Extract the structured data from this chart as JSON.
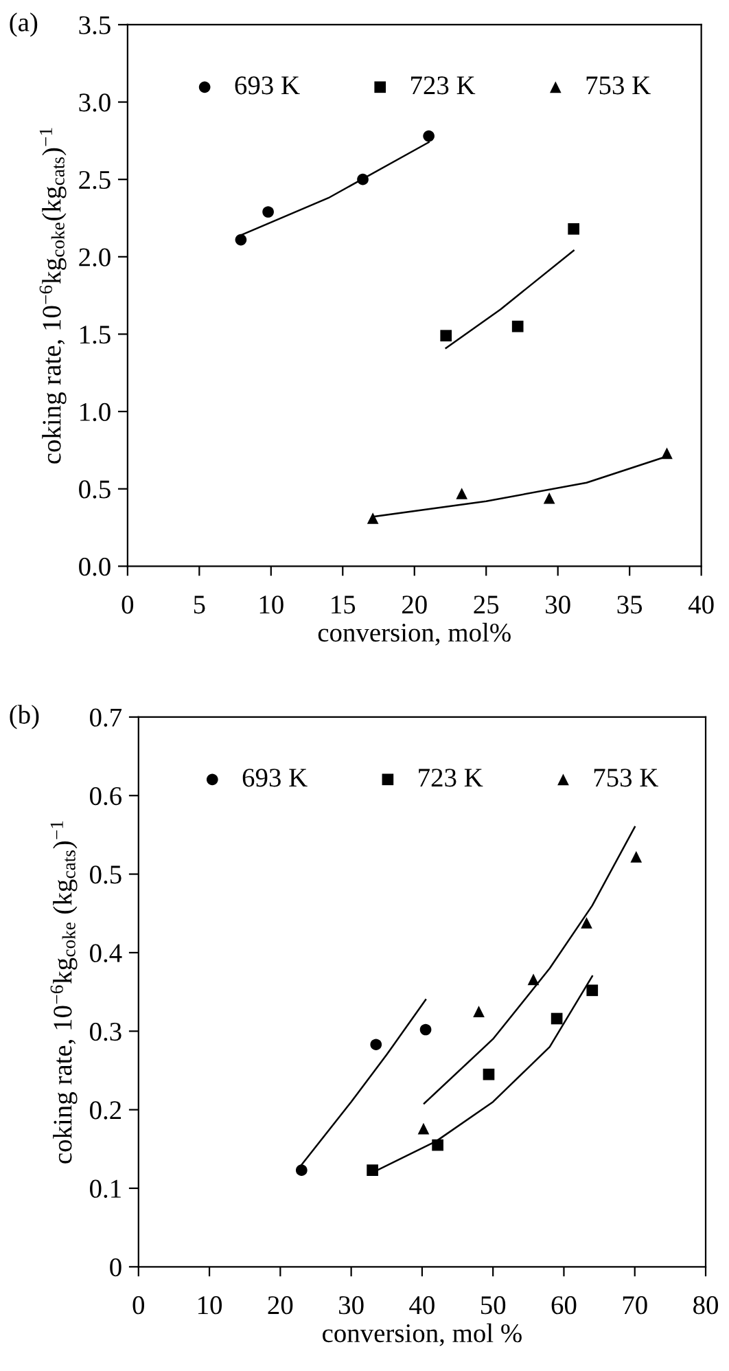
{
  "chart_data": [
    {
      "type": "scatter",
      "annotations": [
        "(a)"
      ],
      "xlabel": "conversion, mol%",
      "ylabel": "coking rate, 10$^{−6}$kg$_{coke}$(kg$_{cats}$)$^{−1}$",
      "xlim": [
        0,
        40
      ],
      "xticks": [
        0,
        5,
        10,
        15,
        20,
        25,
        30,
        35,
        40
      ],
      "ylim": [
        0,
        3.5
      ],
      "yticks": [
        {
          "value": 0,
          "label": "0.0"
        },
        0.5,
        {
          "value": 1,
          "label": "1.0"
        },
        1.5,
        {
          "value": 2,
          "label": "2.0"
        },
        2.5,
        {
          "value": 3,
          "label": "3.0"
        },
        3.5
      ],
      "grid": false,
      "legend": "top",
      "series": [
        {
          "name": "693 K",
          "color": "#000000",
          "marker": "circle",
          "x": [
            7.9,
            9.8,
            16.4,
            21.0
          ],
          "values": [
            2.11,
            2.29,
            2.5,
            2.78
          ]
        },
        {
          "name": "723 K",
          "color": "#000000",
          "marker": "square",
          "x": [
            22.2,
            27.2,
            31.1
          ],
          "values": [
            1.49,
            1.55,
            2.18
          ]
        },
        {
          "name": "753 K",
          "color": "#000000",
          "marker": "triangle",
          "x": [
            17.1,
            23.3,
            29.4,
            37.6
          ],
          "values": [
            0.31,
            0.47,
            0.44,
            0.73
          ]
        },
        {
          "type": "line",
          "color": "#000000",
          "marker": "none",
          "line_style": "solid",
          "x": [
            7.9,
            14,
            21
          ],
          "values": [
            2.14,
            2.38,
            2.74
          ]
        },
        {
          "type": "line",
          "color": "#000000",
          "marker": "none",
          "line_style": "solid",
          "x": [
            22.2,
            26,
            31.1
          ],
          "values": [
            1.41,
            1.66,
            2.04
          ]
        },
        {
          "type": "line",
          "color": "#000000",
          "marker": "none",
          "line_style": "solid",
          "x": [
            17.1,
            25,
            32,
            37.6
          ],
          "values": [
            0.32,
            0.42,
            0.54,
            0.71
          ]
        }
      ]
    },
    {
      "type": "scatter",
      "annotations": [
        "(b)"
      ],
      "xlabel": "conversion, mol %",
      "ylabel": "coking rate, 10$^{−6}$kg$_{coke}$ (kg$_{cats}$)$^{−1}$",
      "xlim": [
        0,
        80
      ],
      "xticks": [
        0,
        10,
        20,
        30,
        40,
        50,
        60,
        70,
        80
      ],
      "ylim": [
        0,
        0.7
      ],
      "yticks": [
        0,
        0.1,
        0.2,
        0.3,
        0.4,
        0.5,
        0.6,
        0.7
      ],
      "grid": false,
      "legend": "top",
      "series": [
        {
          "name": "693 K",
          "color": "#000000",
          "marker": "circle",
          "x": [
            23,
            33.5,
            40.5
          ],
          "values": [
            0.123,
            0.283,
            0.302
          ]
        },
        {
          "name": "723 K",
          "color": "#000000",
          "marker": "square",
          "x": [
            33,
            42.2,
            49.4,
            59,
            64
          ],
          "values": [
            0.123,
            0.155,
            0.245,
            0.316,
            0.352
          ]
        },
        {
          "name": "753 K",
          "color": "#000000",
          "marker": "triangle",
          "x": [
            40.2,
            48,
            55.7,
            63.2,
            70.2
          ],
          "values": [
            0.176,
            0.325,
            0.366,
            0.438,
            0.522
          ]
        },
        {
          "type": "line",
          "color": "#000000",
          "marker": "none",
          "line_style": "solid",
          "x": [
            23,
            30,
            35,
            40.5
          ],
          "values": [
            0.13,
            0.21,
            0.27,
            0.34
          ]
        },
        {
          "type": "line",
          "color": "#000000",
          "marker": "none",
          "line_style": "solid",
          "x": [
            33,
            42,
            50,
            58,
            64
          ],
          "values": [
            0.12,
            0.16,
            0.21,
            0.28,
            0.37
          ]
        },
        {
          "type": "line",
          "color": "#000000",
          "marker": "none",
          "line_style": "solid",
          "x": [
            40.3,
            50,
            58,
            64,
            70
          ],
          "values": [
            0.208,
            0.29,
            0.38,
            0.46,
            0.56
          ]
        }
      ]
    }
  ]
}
